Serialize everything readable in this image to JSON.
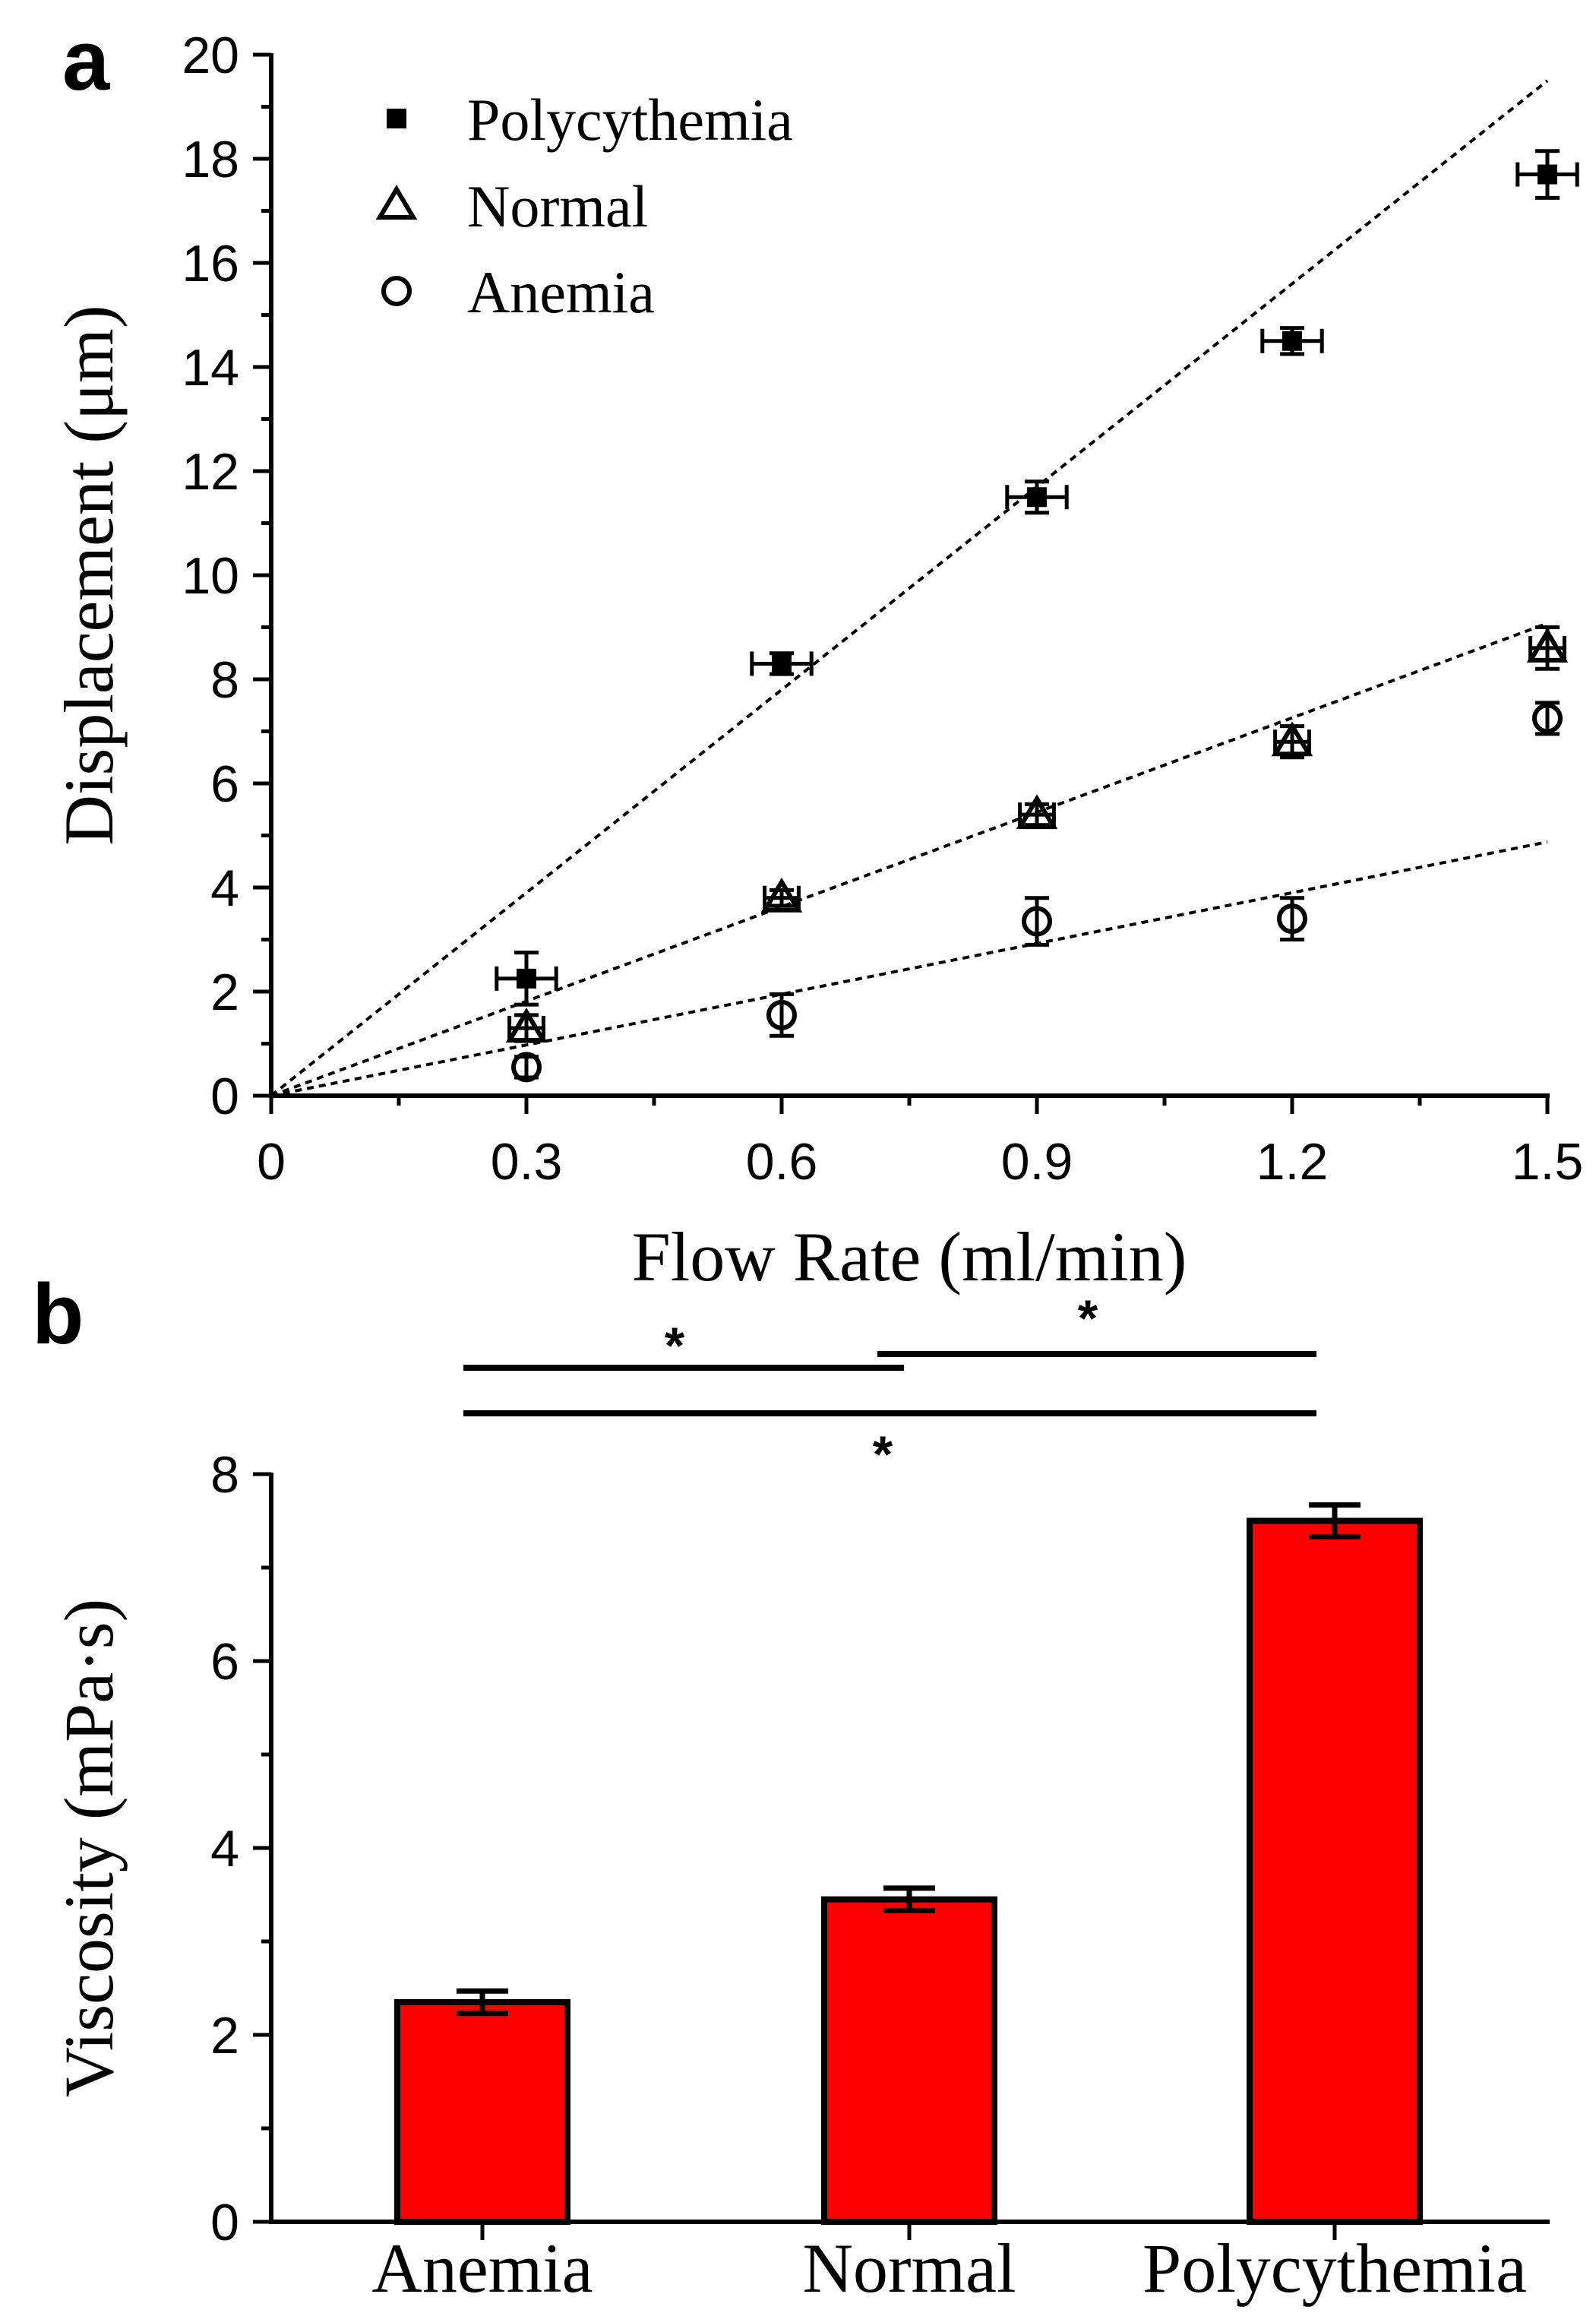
{
  "chart_data": [
    {
      "panel": "a",
      "type": "scatter",
      "xlabel": "Flow Rate (ml/min)",
      "ylabel": "Displacement (μm)",
      "xlim": [
        0,
        1.5
      ],
      "ylim": [
        0,
        20
      ],
      "xticks": [
        "0",
        "0.3",
        "0.6",
        "0.9",
        "1.2",
        "1.5"
      ],
      "yticks": [
        "0",
        "2",
        "4",
        "6",
        "8",
        "10",
        "12",
        "14",
        "16",
        "18",
        "20"
      ],
      "legend_position": "top-left",
      "series": [
        {
          "name": "Polycythemia",
          "marker": "filled-square",
          "x": [
            0.3,
            0.6,
            0.9,
            1.2,
            1.5
          ],
          "y": [
            2.25,
            8.3,
            11.5,
            14.5,
            17.7
          ],
          "yerr": [
            0.5,
            0.2,
            0.3,
            0.25,
            0.45
          ],
          "xerr": [
            0.035,
            0.035,
            0.035,
            0.035,
            0.035
          ],
          "fit_slope": 13.0
        },
        {
          "name": "Normal",
          "marker": "open-triangle",
          "x": [
            0.3,
            0.6,
            0.9,
            1.2,
            1.5
          ],
          "y": [
            1.3,
            3.8,
            5.4,
            6.8,
            8.6
          ],
          "yerr": [
            0.25,
            0.15,
            0.2,
            0.3,
            0.4
          ],
          "xerr": [
            0.02,
            0.02,
            0.02,
            0.02,
            0.02
          ],
          "fit_slope": 6.05
        },
        {
          "name": "Anemia",
          "marker": "open-circle",
          "x": [
            0.3,
            0.6,
            0.9,
            1.2,
            1.5
          ],
          "y": [
            0.55,
            1.55,
            3.35,
            3.4,
            7.25
          ],
          "yerr": [
            0.2,
            0.4,
            0.45,
            0.4,
            0.3
          ],
          "xerr": [
            0.0,
            0.0,
            0.0,
            0.0,
            0.0
          ],
          "fit_slope": 3.25
        }
      ]
    },
    {
      "panel": "b",
      "type": "bar",
      "xlabel": "",
      "ylabel": "Viscosity (mPa·s)",
      "ylim": [
        0,
        8
      ],
      "yticks": [
        "0",
        "2",
        "4",
        "6",
        "8"
      ],
      "categories": [
        "Anemia",
        "Normal",
        "Polycythemia"
      ],
      "values": [
        2.35,
        3.45,
        7.5
      ],
      "errors": [
        0.12,
        0.12,
        0.17
      ],
      "bar_color": "#ff0000",
      "significance": [
        {
          "from": "Anemia",
          "to": "Normal",
          "label": "*"
        },
        {
          "from": "Normal",
          "to": "Polycythemia",
          "label": "*"
        },
        {
          "from": "Anemia",
          "to": "Polycythemia",
          "label": "*"
        }
      ]
    }
  ],
  "panels": {
    "a_label": "a",
    "b_label": "b"
  }
}
